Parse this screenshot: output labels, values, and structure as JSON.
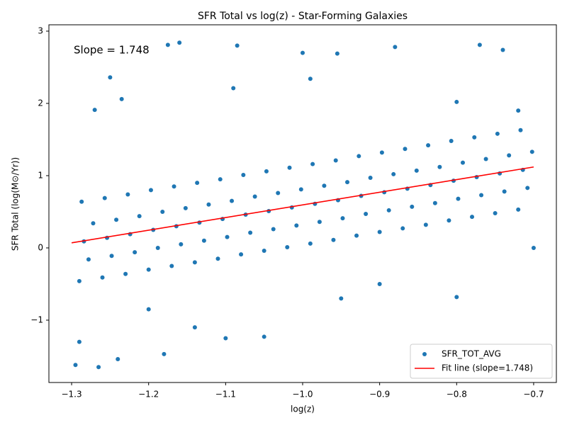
{
  "chart_data": {
    "type": "scatter",
    "title": "SFR Total vs log(z) - Star-Forming Galaxies",
    "x_label": "log(z)",
    "y_label": "SFR Total (log(M⊙/Yr))",
    "annotation": "Slope = 1.748",
    "annotation_color": "#ff0000",
    "legend": "lower right",
    "xlim": [
      -1.3295,
      -0.6705
    ],
    "ylim": [
      -1.863,
      3.088
    ],
    "xticks": [
      {
        "value": -1.3,
        "label": "−1.3"
      },
      {
        "value": -1.2,
        "label": "−1.2"
      },
      {
        "value": -1.1,
        "label": "−1.1"
      },
      {
        "value": -1.0,
        "label": "−1.0"
      },
      {
        "value": -0.9,
        "label": "−0.9"
      },
      {
        "value": -0.8,
        "label": "−0.8"
      },
      {
        "value": -0.7,
        "label": "−0.7"
      }
    ],
    "yticks": [
      {
        "value": -1,
        "label": "−1"
      },
      0,
      1,
      2,
      3
    ],
    "series": [
      {
        "name": "SFR_TOT_AVG",
        "type": "scatter",
        "color": "#1f77b4",
        "x": [
          -1.29,
          -1.278,
          -1.284,
          -1.272,
          -1.287,
          -1.26,
          -1.248,
          -1.254,
          -1.242,
          -1.257,
          -1.23,
          -1.218,
          -1.224,
          -1.212,
          -1.227,
          -1.2,
          -1.188,
          -1.194,
          -1.182,
          -1.197,
          -1.17,
          -1.158,
          -1.164,
          -1.152,
          -1.167,
          -1.14,
          -1.128,
          -1.134,
          -1.122,
          -1.137,
          -1.11,
          -1.098,
          -1.104,
          -1.092,
          -1.107,
          -1.08,
          -1.068,
          -1.074,
          -1.062,
          -1.077,
          -1.05,
          -1.038,
          -1.044,
          -1.032,
          -1.047,
          -1.02,
          -1.008,
          -1.014,
          -1.002,
          -1.017,
          -0.99,
          -0.978,
          -0.984,
          -0.972,
          -0.987,
          -0.96,
          -0.948,
          -0.954,
          -0.942,
          -0.957,
          -0.93,
          -0.918,
          -0.924,
          -0.912,
          -0.927,
          -0.9,
          -0.888,
          -0.894,
          -0.882,
          -0.897,
          -0.87,
          -0.858,
          -0.864,
          -0.852,
          -0.867,
          -0.84,
          -0.828,
          -0.834,
          -0.822,
          -0.837,
          -0.81,
          -0.798,
          -0.804,
          -0.792,
          -0.807,
          -0.78,
          -0.768,
          -0.774,
          -0.762,
          -0.777,
          -0.75,
          -0.738,
          -0.744,
          -0.732,
          -0.747,
          -0.72,
          -0.708,
          -0.714,
          -0.702,
          -0.717,
          -1.16,
          -1.175,
          -1.085,
          -0.77,
          -0.74,
          -1.0,
          -0.955,
          -0.88,
          -1.25,
          -1.235,
          -1.27,
          -1.265,
          -1.295,
          -1.29,
          -1.24,
          -1.18,
          -1.1,
          -1.05,
          -0.8,
          -1.2,
          -1.14,
          -0.95,
          -0.9,
          -0.7,
          -0.72,
          -0.8,
          -0.99,
          -1.09
        ],
        "values": [
          -0.46,
          -0.16,
          0.09,
          0.34,
          0.64,
          -0.41,
          -0.11,
          0.14,
          0.39,
          0.69,
          -0.36,
          -0.06,
          0.19,
          0.44,
          0.74,
          -0.3,
          0.0,
          0.25,
          0.5,
          0.8,
          -0.25,
          0.05,
          0.3,
          0.55,
          0.85,
          -0.2,
          0.1,
          0.35,
          0.6,
          0.9,
          -0.15,
          0.15,
          0.4,
          0.65,
          0.95,
          -0.09,
          0.21,
          0.46,
          0.71,
          1.01,
          -0.04,
          0.26,
          0.51,
          0.76,
          1.06,
          0.01,
          0.31,
          0.56,
          0.81,
          1.11,
          0.06,
          0.36,
          0.61,
          0.86,
          1.16,
          0.11,
          0.41,
          0.66,
          0.91,
          1.21,
          0.17,
          0.47,
          0.72,
          0.97,
          1.27,
          0.22,
          0.52,
          0.77,
          1.02,
          1.32,
          0.27,
          0.57,
          0.82,
          1.07,
          1.37,
          0.32,
          0.62,
          0.87,
          1.12,
          1.42,
          0.38,
          0.68,
          0.93,
          1.18,
          1.48,
          0.43,
          0.73,
          0.98,
          1.23,
          1.53,
          0.48,
          0.78,
          1.03,
          1.28,
          1.58,
          0.53,
          0.83,
          1.08,
          1.33,
          1.63,
          2.84,
          2.81,
          2.8,
          2.81,
          2.74,
          2.7,
          2.69,
          2.78,
          2.36,
          2.06,
          1.91,
          -1.65,
          -1.62,
          -1.3,
          -1.54,
          -1.47,
          -1.25,
          -1.23,
          -0.68,
          -0.85,
          -1.1,
          -0.7,
          -0.5,
          0.0,
          1.9,
          2.02,
          2.34,
          2.21
        ]
      },
      {
        "name": "Fit line (slope=1.748)",
        "type": "line",
        "color": "#ff0000",
        "x": [
          -1.3,
          -0.7
        ],
        "values": [
          0.07,
          1.12
        ]
      }
    ]
  }
}
